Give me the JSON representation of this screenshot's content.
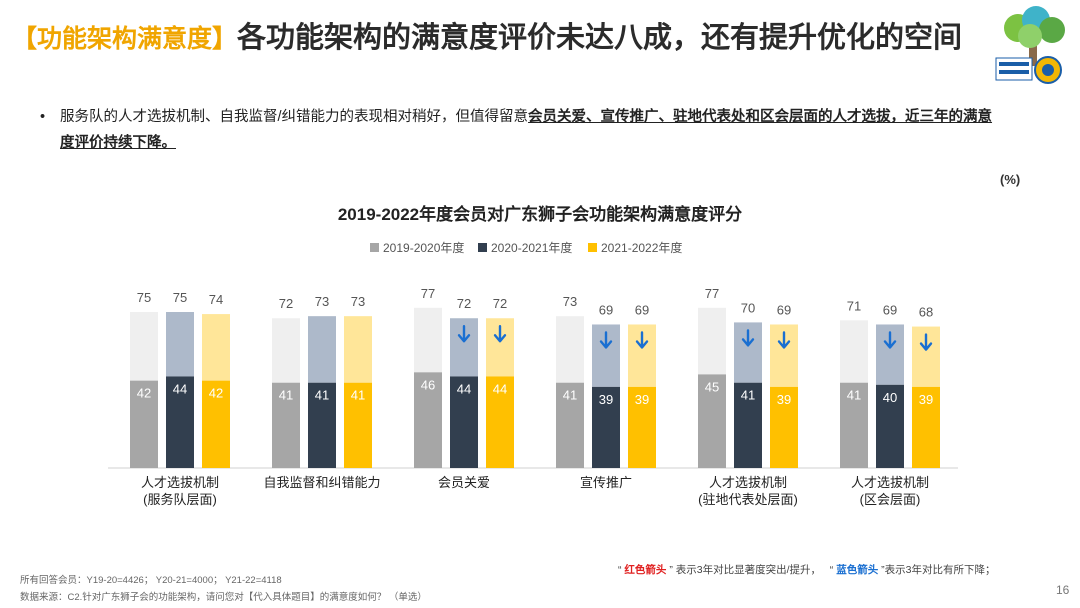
{
  "header": {
    "tag": "【功能架构满意度】",
    "title": "各功能架构的满意度评价未达八成，还有提升优化的空间"
  },
  "bullet": {
    "dot": "•",
    "text_plain": "服务队的人才选拔机制、自我监督/纠错能力的表现相对稍好，但值得留意",
    "text_bold": "会员关爱、宣传推广、驻地代表处和区会层面的人才选拔，近三年的满意度评价持续下降。"
  },
  "unit_label": "(%)",
  "chart_data": {
    "type": "bar",
    "title": "2019-2022年度会员对广东狮子会功能架构满意度评分",
    "categories": [
      [
        "人才选拔机制",
        "(服务队层面)"
      ],
      [
        "自我监督和纠错能力"
      ],
      [
        "会员关爱"
      ],
      [
        "宣传推广"
      ],
      [
        "人才选拔机制",
        "(驻地代表处层面)"
      ],
      [
        "人才选拔机制",
        "(区会层面)"
      ]
    ],
    "series": [
      {
        "name": "2019-2020年度",
        "totals": [
          75,
          72,
          77,
          73,
          77,
          71
        ],
        "inner": [
          42,
          41,
          46,
          41,
          45,
          41
        ],
        "color_top": "#efefef",
        "color_bottom": "#a6a6a6"
      },
      {
        "name": "2020-2021年度",
        "totals": [
          75,
          73,
          72,
          69,
          70,
          69
        ],
        "inner": [
          44,
          41,
          44,
          39,
          41,
          40
        ],
        "color_top": "#adb9ca",
        "color_bottom": "#323f4f"
      },
      {
        "name": "2021-2022年度",
        "totals": [
          74,
          73,
          72,
          69,
          69,
          68
        ],
        "inner": [
          42,
          41,
          44,
          39,
          39,
          39
        ],
        "color_top": "#ffe699",
        "color_bottom": "#ffc000"
      }
    ],
    "down_arrows": {
      "2020-2021年度": [
        false,
        false,
        true,
        true,
        true,
        true
      ],
      "2021-2022年度": [
        false,
        false,
        true,
        true,
        true,
        true
      ]
    },
    "ylim": [
      0,
      100
    ],
    "arrow_color": "#1a6fd1"
  },
  "legend_note": {
    "q1": "“",
    "red_label": "红色箭头",
    "red_desc": "” 表示3年对比显著度突出/提升，",
    "q2": "“",
    "blue_label": "蓝色箭头",
    "blue_desc": "”表示3年对比有所下降；"
  },
  "notes": {
    "line1": "所有回答会员：Y19-20=4426； Y20-21=4000； Y21-22=4118",
    "line2": "数据来源：C2.针对广东狮子会的功能架构，请问您对【代入具体题目】的满意度如何？ （单选）"
  },
  "page_number": "16"
}
